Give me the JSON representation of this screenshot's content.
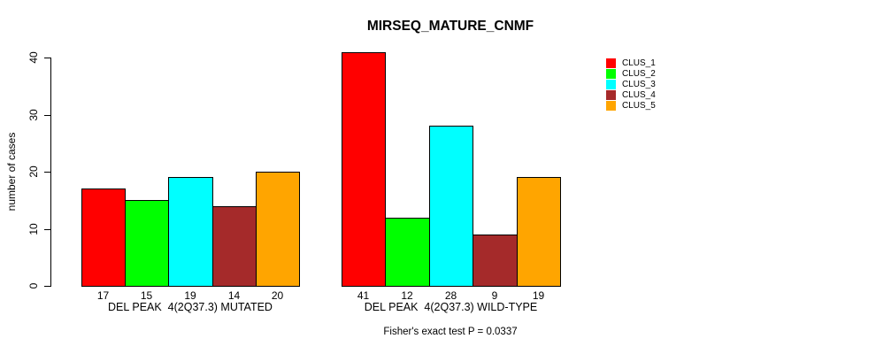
{
  "chart_data": {
    "type": "bar",
    "title": "MIRSEQ_MATURE_CNMF",
    "ylabel": "number of cases",
    "ylim": [
      0,
      40
    ],
    "yticks": [
      0,
      10,
      20,
      30,
      40
    ],
    "grid": false,
    "legend_position": "right-top",
    "series": [
      {
        "name": "CLUS_1",
        "color": "#FF0000"
      },
      {
        "name": "CLUS_2",
        "color": "#00FF00"
      },
      {
        "name": "CLUS_3",
        "color": "#00FFFF"
      },
      {
        "name": "CLUS_4",
        "color": "#A52A2A"
      },
      {
        "name": "CLUS_5",
        "color": "#FFA500"
      }
    ],
    "groups": [
      {
        "label": "DEL PEAK  4(2Q37.3) MUTATED",
        "values": [
          17,
          15,
          19,
          14,
          20
        ],
        "value_labels": [
          "17",
          "15",
          "19",
          "14",
          "20"
        ]
      },
      {
        "label": "DEL PEAK  4(2Q37.3) WILD-TYPE",
        "values": [
          41,
          12,
          28,
          9,
          19
        ],
        "value_labels": [
          "41",
          "12",
          "28",
          "9",
          "19"
        ]
      }
    ],
    "footnote": "Fisher's exact test P = 0.0337"
  }
}
